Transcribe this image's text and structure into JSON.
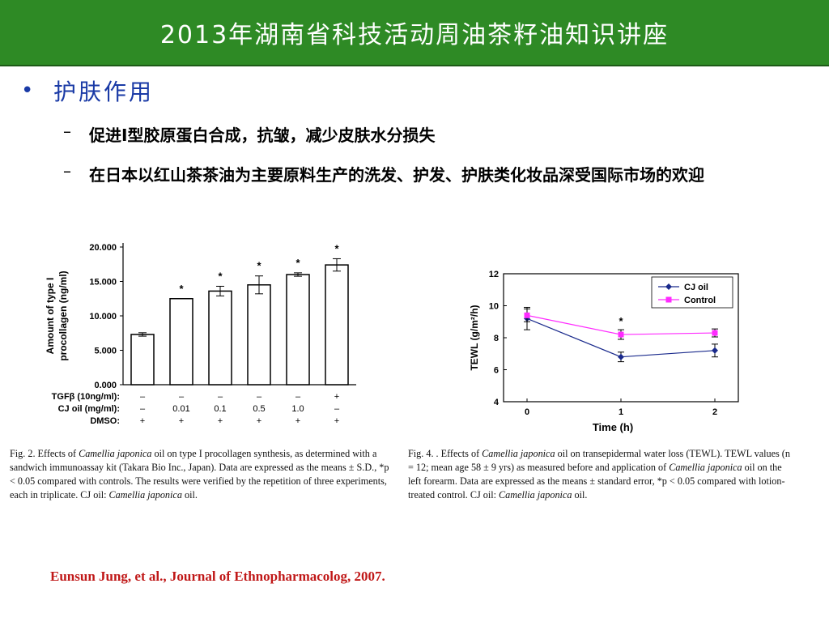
{
  "header": {
    "title": "2013年湖南省科技活动周油茶籽油知识讲座",
    "background": "#2e8a25"
  },
  "bullet": {
    "symbol": "•",
    "text": "护肤作用",
    "color": "#1a3aa6"
  },
  "subpoints": [
    {
      "dash": "–",
      "text": "促进I型胶原蛋白合成，抗皱，减少皮肤水分损失"
    },
    {
      "dash": "–",
      "text": "在日本以红山茶茶油为主要原料生产的洗发、护发、护肤类化妆品深受国际市场的欢迎"
    }
  ],
  "chart_data": [
    {
      "type": "bar",
      "ylabel": "Amount of type I procollagen (ng/ml)",
      "ylim": [
        0,
        20000
      ],
      "yticks": [
        "0.000",
        "5.000",
        "10.000",
        "15.000",
        "20.000"
      ],
      "ytick_values": [
        0,
        5000,
        10000,
        15000,
        20000
      ],
      "values": [
        7300,
        12500,
        13600,
        14500,
        16000,
        17400
      ],
      "errors": [
        250,
        0,
        700,
        1300,
        250,
        900
      ],
      "significance": [
        "",
        "*",
        "*",
        "*",
        "*",
        "*"
      ],
      "conditions": [
        {
          "label": "TGFβ (10ng/ml):",
          "values": [
            "–",
            "–",
            "–",
            "–",
            "–",
            "+"
          ]
        },
        {
          "label": "CJ oil (mg/ml):",
          "values": [
            "–",
            "0.01",
            "0.1",
            "0.5",
            "1.0",
            "–"
          ]
        },
        {
          "label": "DMSO:",
          "values": [
            "+",
            "+",
            "+",
            "+",
            "+",
            "+"
          ]
        }
      ],
      "caption": "Fig. 2. Effects of Camellia japonica oil on type I procollagen synthesis, as determined with a sandwich immunoassay kit (Takara Bio Inc., Japan). Data are expressed as the means ± S.D., *p < 0.05 compared with controls. The results were verified by the repetition of three experiments, each in triplicate. CJ oil: Camellia japonica oil."
    },
    {
      "type": "line",
      "xlabel": "Time (h)",
      "ylabel": "TEWL (g/m²/h)",
      "x": [
        0,
        1,
        2
      ],
      "xlim": [
        -0.25,
        2.25
      ],
      "ylim": [
        4,
        12
      ],
      "yticks": [
        4,
        6,
        8,
        10,
        12
      ],
      "legend_position": "top-right",
      "series": [
        {
          "name": "CJ oil",
          "color": "#1a2a8c",
          "marker": "diamond",
          "values": [
            9.2,
            6.8,
            7.2
          ],
          "errors": [
            0.7,
            0.3,
            0.4
          ]
        },
        {
          "name": "Control",
          "color": "#ff2bff",
          "marker": "square",
          "values": [
            9.4,
            8.2,
            8.3
          ],
          "errors": [
            0.4,
            0.3,
            0.25
          ]
        }
      ],
      "significance": [
        {
          "x": 1,
          "label": "*"
        }
      ],
      "caption": "Fig. 4. . Effects of Camellia japonica oil on transepidermal water loss (TEWL). TEWL values (n = 12; mean age 58 ± 9 yrs) as measured before and application of Camellia japonica oil on the left forearm. Data are expressed as the means ± standard error, *p < 0.05 compared with lotion-treated control. CJ oil: Camellia japonica oil."
    }
  ],
  "citation": {
    "text": "Eunsun Jung, et al., Journal of Ethnopharmacolog, 2007.",
    "color": "#c01818"
  }
}
